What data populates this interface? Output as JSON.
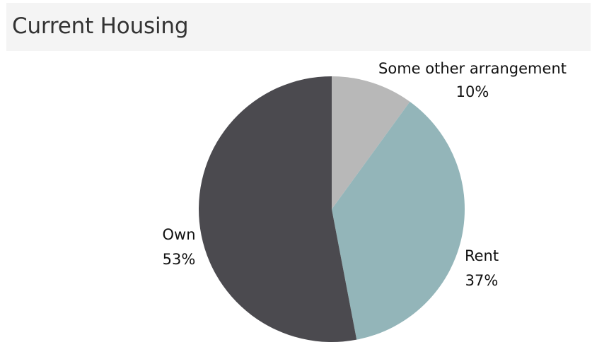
{
  "header": {
    "title": "Current Housing"
  },
  "chart_data": {
    "type": "pie",
    "title": "Current Housing",
    "start_angle_deg": 0,
    "direction": "clockwise",
    "slices": [
      {
        "label": "Some other arrangement",
        "value": 10,
        "value_label": "10%",
        "color": "#b8b8b8"
      },
      {
        "label": "Rent",
        "value": 37,
        "value_label": "37%",
        "color": "#93b5b9"
      },
      {
        "label": "Own",
        "value": 53,
        "value_label": "53%",
        "color": "#4b4a4f"
      }
    ]
  }
}
